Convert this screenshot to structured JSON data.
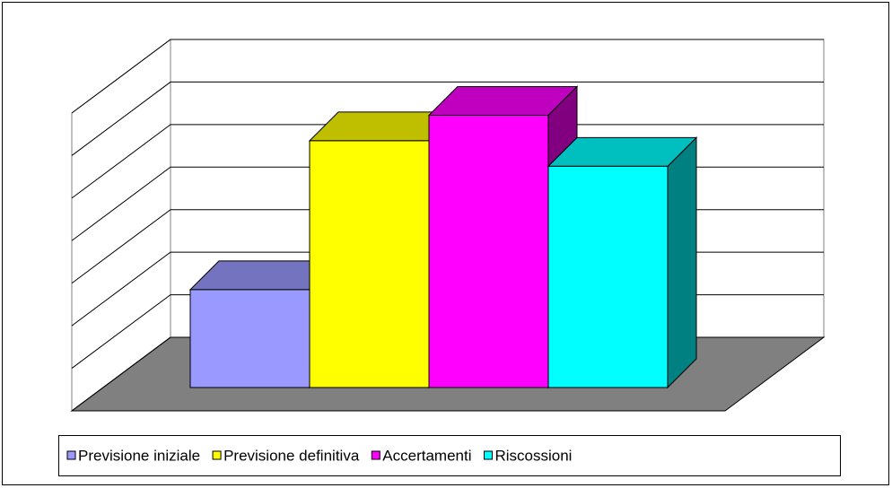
{
  "chart_data": {
    "type": "bar3d",
    "series": [
      {
        "name": "Previsione iniziale",
        "color": "#9999ff",
        "values": [
          2.3
        ]
      },
      {
        "name": "Previsione definitiva",
        "color": "#ffff00",
        "values": [
          5.8
        ]
      },
      {
        "name": "Accertamenti",
        "color": "#ff00ff",
        "values": [
          6.4
        ]
      },
      {
        "name": "Riscossioni",
        "color": "#00ffff",
        "values": [
          5.2
        ]
      }
    ],
    "ylim": [
      0,
      7
    ],
    "yticks": [
      0,
      1,
      2,
      3,
      4,
      5,
      6,
      7
    ],
    "grid": true,
    "floor_color": "#808080",
    "legend": "bottom"
  }
}
